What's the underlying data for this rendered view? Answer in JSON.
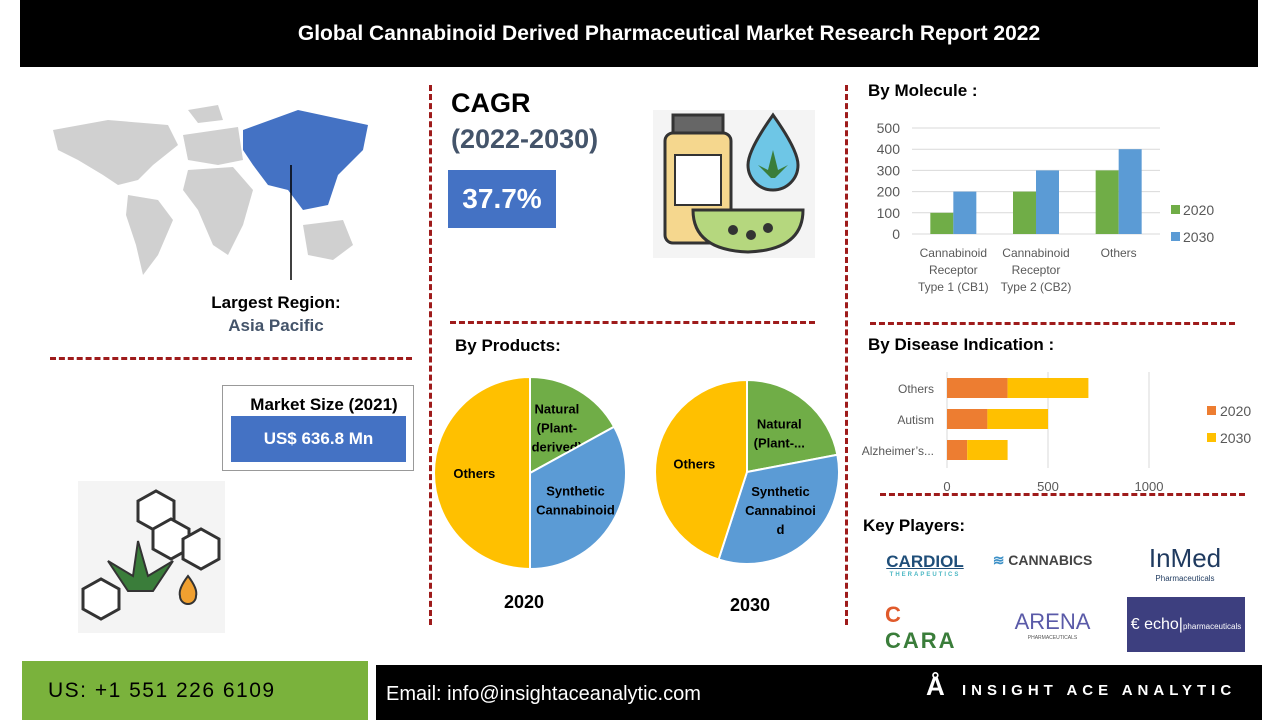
{
  "header": {
    "title": "Global Cannabinoid Derived Pharmaceutical Market Research Report 2022"
  },
  "region": {
    "label": "Largest Region:",
    "value": "Asia Pacific"
  },
  "market_size": {
    "label": "Market Size (2021)",
    "value": "US$ 636.8 Mn"
  },
  "cagr": {
    "label": "CAGR",
    "period": "(2022-2030)",
    "value": "37.7%"
  },
  "products": {
    "title": "By Products:"
  },
  "molecule": {
    "title": "By Molecule :"
  },
  "disease": {
    "title": "By Disease Indication :"
  },
  "key_players": {
    "title": "Key Players:",
    "logos": [
      "CARDIOL THERAPEUTICS",
      "CANNABICS PHARMACEUTICALS",
      "InMed Pharmaceuticals",
      "CARA THERAPEUTICS",
      "ARENA PHARMACEUTICALS",
      "echo pharmaceuticals"
    ]
  },
  "footer": {
    "phone": "US: +1 551 226 6109",
    "email": "Email: info@insightaceanalytic.com",
    "brand": "INSIGHT ACE ANALYTIC"
  },
  "colors": {
    "green": "#70ad47",
    "blue": "#5b9bd5",
    "orange": "#ed7d31",
    "yellow": "#ffc000",
    "accent_blue": "#4472c4",
    "dash": "#9e1b1b"
  },
  "chart_data": [
    {
      "type": "pie",
      "title": "2020",
      "labels": [
        "Natural (Plant-derived)",
        "Synthetic Cannabinoid",
        "Others"
      ],
      "values": [
        17,
        33,
        50
      ]
    },
    {
      "type": "pie",
      "title": "2030",
      "labels": [
        "Natural (Plant-...",
        "Synthetic Cannabinoid",
        "Others"
      ],
      "values": [
        22,
        33,
        45
      ]
    },
    {
      "type": "bar",
      "title": "By Molecule :",
      "categories": [
        [
          "Cannabinoid",
          "Receptor",
          "Type 1 (CB1)"
        ],
        [
          "Cannabinoid",
          "Receptor",
          "Type 2 (CB2)"
        ],
        [
          "Others"
        ]
      ],
      "series": [
        {
          "name": "2020",
          "values": [
            100,
            200,
            300
          ]
        },
        {
          "name": "2030",
          "values": [
            200,
            300,
            400
          ]
        }
      ],
      "ylim": [
        0,
        500
      ],
      "yticks": [
        "0",
        "100",
        "200",
        "300",
        "400",
        "500"
      ],
      "grid": true,
      "legend": "right"
    },
    {
      "type": "bar",
      "orientation": "horizontal",
      "stacked": true,
      "title": "By Disease Indication :",
      "categories": [
        "Others",
        "Autism",
        "Alzheimer’s..."
      ],
      "series": [
        {
          "name": "2020",
          "values": [
            300,
            200,
            100
          ]
        },
        {
          "name": "2030",
          "values": [
            400,
            300,
            200
          ]
        }
      ],
      "xlim": [
        0,
        1000
      ],
      "xticks": [
        "0",
        "500",
        "1000"
      ],
      "grid": true,
      "legend": "right"
    }
  ]
}
